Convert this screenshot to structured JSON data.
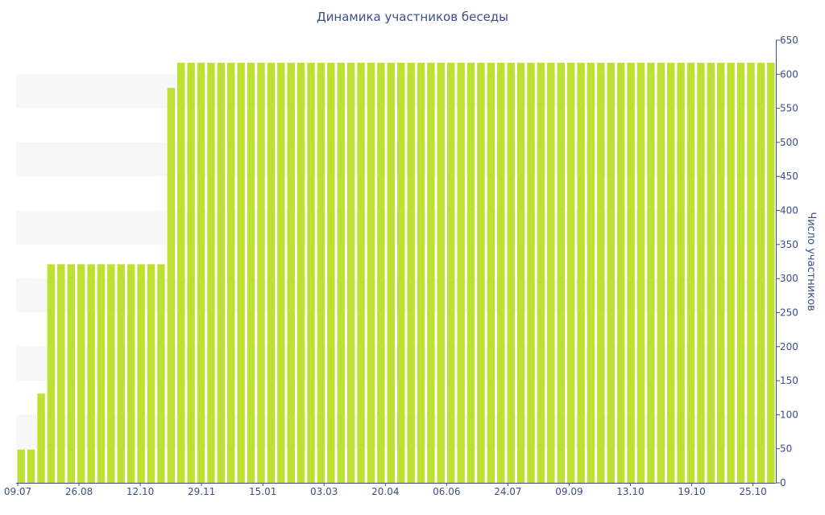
{
  "chart_data": {
    "type": "bar",
    "title": "Динамика участников беседы",
    "ylabel": "Число участников",
    "xlabel": "",
    "ylim": [
      0,
      650
    ],
    "yticks": [
      0,
      50,
      100,
      150,
      200,
      250,
      300,
      350,
      400,
      450,
      500,
      550,
      600,
      650
    ],
    "y_axis_side": "right",
    "grid": "alternating horizontal bands",
    "x_tick_labels": [
      "09.07",
      "26.08",
      "12.10",
      "29.11",
      "15.01",
      "03.03",
      "20.04",
      "06.06",
      "24.07",
      "09.09",
      "13.10",
      "19.10",
      "25.10"
    ],
    "values": [
      49,
      49,
      131,
      321,
      321,
      321,
      321,
      321,
      321,
      321,
      321,
      321,
      321,
      321,
      321,
      580,
      617,
      617,
      617,
      617,
      617,
      617,
      617,
      617,
      617,
      617,
      617,
      617,
      617,
      617,
      617,
      617,
      617,
      617,
      617,
      617,
      617,
      617,
      617,
      617,
      617,
      617,
      617,
      617,
      617,
      617,
      617,
      617,
      617,
      617,
      617,
      617,
      617,
      617,
      617,
      617,
      617,
      617,
      617,
      617,
      617,
      617,
      617,
      617,
      617,
      617,
      617,
      617,
      617,
      617,
      617,
      617,
      617,
      617,
      617,
      617
    ],
    "colors": {
      "bar": "#bde132",
      "axis": "#3b4e8c",
      "band": "#f7f7f7"
    }
  }
}
